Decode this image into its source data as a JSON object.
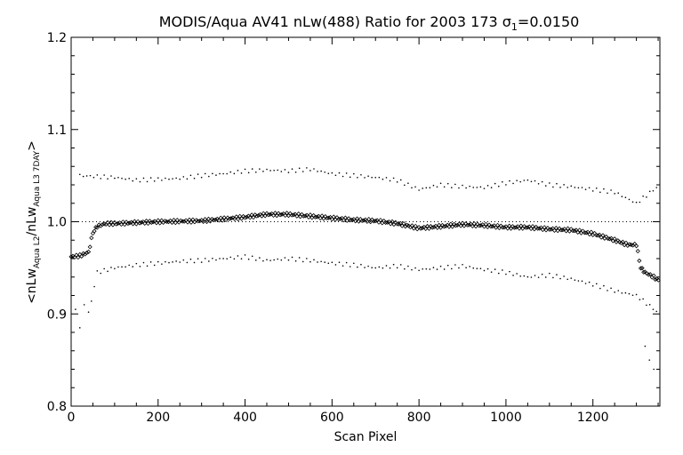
{
  "chart_data": {
    "type": "scatter",
    "title_main": "MODIS/Aqua AV41 nLw(488) Ratio for 2003 173 ",
    "title_sigma": "σ",
    "title_sigma_sub": "1",
    "title_sigma_value": "=0.0150",
    "xlabel": "Scan Pixel",
    "ylabel_parts": {
      "open": "<nLw",
      "sub1": "Aqua L2",
      "mid": "/nLw",
      "sub2": "Aqua L3 7DAY",
      "close": ">"
    },
    "xlim": [
      0,
      1354
    ],
    "ylim": [
      0.8,
      1.2
    ],
    "x_ticks": [
      0,
      200,
      400,
      600,
      800,
      1000,
      1200
    ],
    "x_tick_labels": [
      "0",
      "200",
      "400",
      "600",
      "800",
      "1000",
      "1200"
    ],
    "y_ticks": [
      0.8,
      0.9,
      1.0,
      1.1,
      1.2
    ],
    "y_tick_labels": [
      "0.8",
      "0.9",
      "1.0",
      "1.1",
      "1.2"
    ],
    "reference_line": 1.0,
    "grid": false,
    "series": [
      {
        "role": "mean",
        "marker": "diamond",
        "x": [
          0,
          20,
          40,
          50,
          60,
          80,
          100,
          150,
          200,
          300,
          400,
          450,
          500,
          550,
          600,
          650,
          700,
          750,
          780,
          800,
          850,
          900,
          950,
          1000,
          1050,
          1100,
          1150,
          1200,
          1250,
          1280,
          1300,
          1310,
          1320,
          1340,
          1354
        ],
        "y": [
          0.962,
          0.963,
          0.967,
          0.988,
          0.995,
          0.998,
          0.998,
          0.999,
          1.0,
          1.001,
          1.005,
          1.008,
          1.008,
          1.006,
          1.004,
          1.002,
          1.001,
          0.998,
          0.995,
          0.993,
          0.995,
          0.997,
          0.996,
          0.994,
          0.994,
          0.992,
          0.991,
          0.987,
          0.98,
          0.975,
          0.975,
          0.95,
          0.945,
          0.94,
          0.935
        ]
      },
      {
        "role": "upper",
        "marker": "dot",
        "x": [
          20,
          100,
          150,
          200,
          250,
          300,
          350,
          400,
          450,
          500,
          550,
          600,
          650,
          700,
          750,
          800,
          850,
          900,
          950,
          1000,
          1050,
          1100,
          1150,
          1200,
          1250,
          1300,
          1354
        ],
        "y": [
          1.05,
          1.048,
          1.045,
          1.046,
          1.047,
          1.05,
          1.052,
          1.055,
          1.056,
          1.055,
          1.057,
          1.052,
          1.05,
          1.048,
          1.045,
          1.035,
          1.04,
          1.038,
          1.037,
          1.042,
          1.045,
          1.04,
          1.038,
          1.035,
          1.032,
          1.02,
          1.04
        ]
      },
      {
        "role": "lower",
        "marker": "dot",
        "x": [
          40,
          60,
          100,
          150,
          200,
          250,
          300,
          350,
          400,
          450,
          500,
          550,
          600,
          650,
          700,
          750,
          800,
          850,
          900,
          950,
          1000,
          1050,
          1100,
          1150,
          1200,
          1250,
          1300,
          1354
        ],
        "y": [
          0.9,
          0.945,
          0.95,
          0.953,
          0.955,
          0.957,
          0.958,
          0.96,
          0.962,
          0.958,
          0.96,
          0.958,
          0.955,
          0.953,
          0.95,
          0.952,
          0.948,
          0.95,
          0.952,
          0.948,
          0.945,
          0.94,
          0.942,
          0.938,
          0.932,
          0.925,
          0.92,
          0.9
        ]
      },
      {
        "role": "outliers",
        "marker": "dot",
        "x": [
          10,
          20,
          30,
          1320,
          1330,
          1340
        ],
        "y": [
          0.905,
          0.885,
          0.91,
          0.865,
          0.85,
          0.84
        ]
      }
    ]
  }
}
